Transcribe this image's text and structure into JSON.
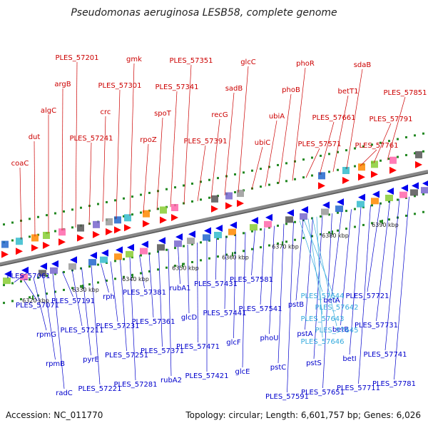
{
  "title": "Pseudomonas aeruginosa LESB58, complete genome",
  "footer": {
    "accession": "Accession: NC_011770",
    "summary": "Topology: circular; Length: 6,601,757 bp; Genes: 6,026"
  },
  "colors": {
    "forward_label": "#cc0000",
    "reverse_label": "#0000cc",
    "highlight_label": "#33aadd",
    "forward_arrow": "#ff0000",
    "reverse_arrow": "#0000ee",
    "track_dots": "#228822",
    "backbone": "#888888"
  },
  "ticks": [
    "6320 kbp",
    "6330 kbp",
    "6340 kbp",
    "6350 kbp",
    "6360 kbp",
    "6370 kbp",
    "6380 kbp",
    "6390 kbp"
  ],
  "forward_labels": [
    "coaC",
    "dut",
    "algC",
    "argB",
    "PLES_57201",
    "PLES_57241",
    "crc",
    "PLES_57301",
    "gmk",
    "rpoZ",
    "spoT",
    "PLES_57341",
    "PLES_57351",
    "PLES_57391",
    "recG",
    "sadB",
    "glcC",
    "ubiC",
    "ubiA",
    "phoB",
    "phoR",
    "PLES_57571",
    "PLES_57661",
    "betT1",
    "sdaB",
    "PLES_57761",
    "PLES_57791",
    "PLES_57851"
  ],
  "reverse_labels": [
    "PLES_57061",
    "PLES_57071",
    "rpmG",
    "rpmB",
    "radC",
    "PLES_57191",
    "PLES_57211",
    "pyrE",
    "PLES_57221",
    "rph",
    "PLES_57231",
    "PLES_57251",
    "PLES_57281",
    "PLES_57381",
    "PLES_57361",
    "PLES_57371",
    "rubA2",
    "rubA1",
    "glcD",
    "PLES_57471",
    "PLES_57421",
    "PLES_57431",
    "PLES_57441",
    "glcF",
    "glcE",
    "PLES_57581",
    "PLES_57541",
    "phoU",
    "pstC",
    "PLES_57591",
    "pstB",
    "pstA",
    "pstS",
    "PLES_57651",
    "betA",
    "betB",
    "betI",
    "PLES_57711",
    "PLES_57721",
    "PLES_57731",
    "PLES_57741",
    "PLES_57781"
  ],
  "highlight_labels": [
    "PLES_57644",
    "PLES_57642",
    "PLES_57643",
    "PLES_57645",
    "PLES_57646"
  ]
}
